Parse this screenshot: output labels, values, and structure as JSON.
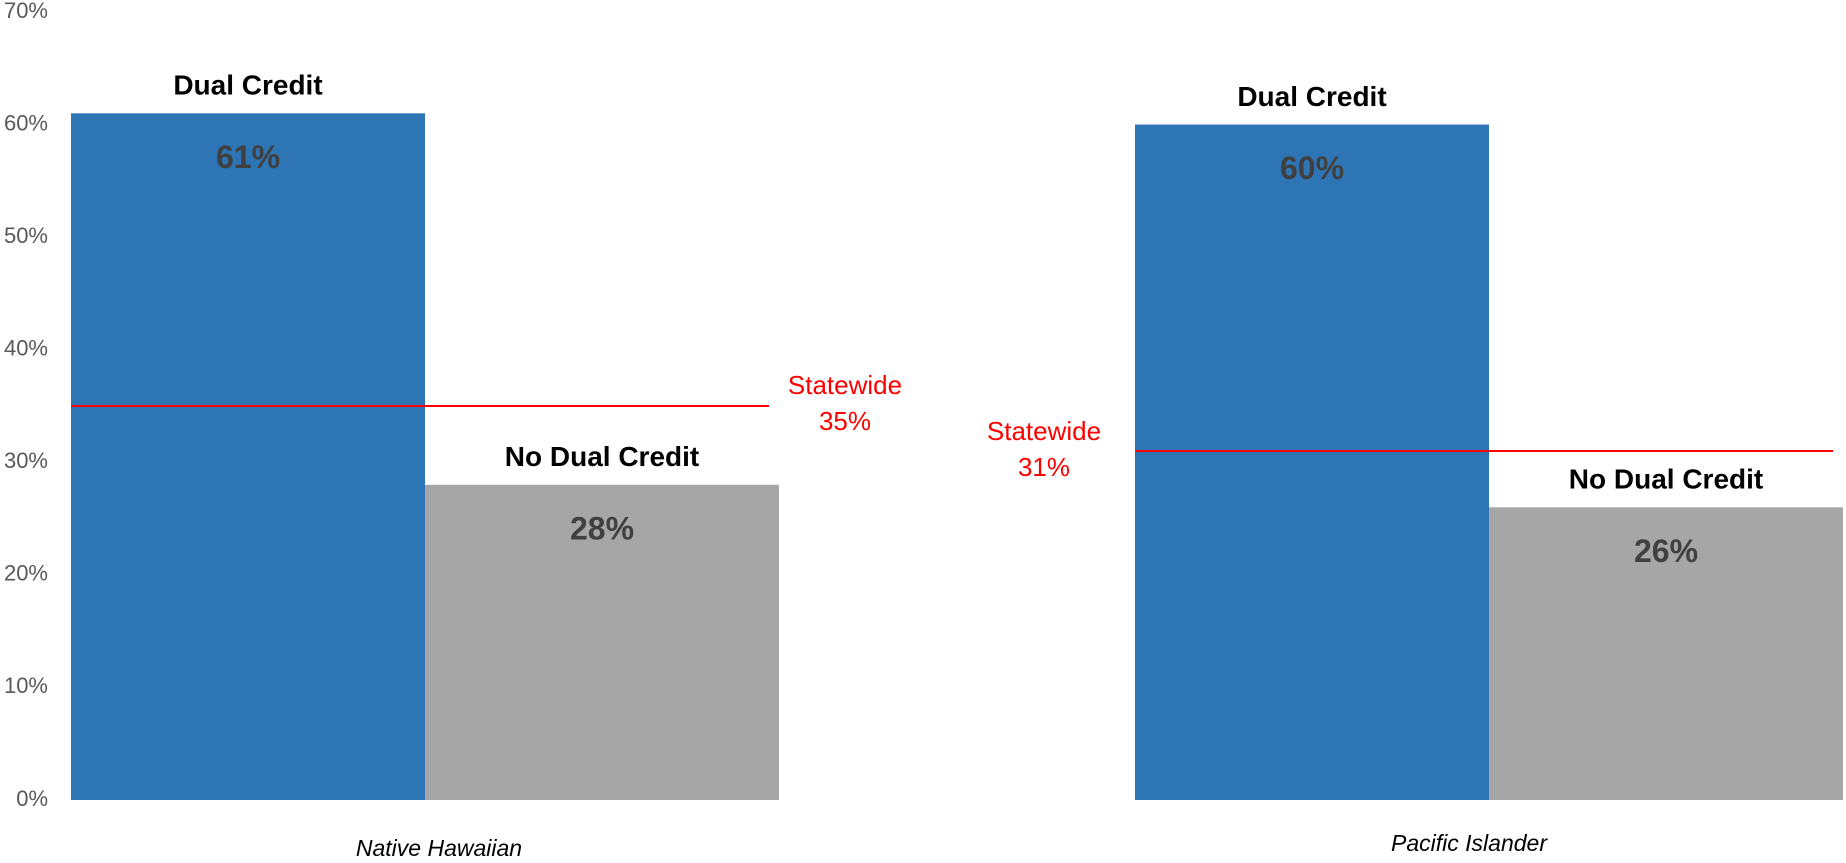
{
  "chart_data": {
    "type": "bar",
    "categories": [
      "Native Hawaiian",
      "Pacific Islander"
    ],
    "series": [
      {
        "name": "Dual Credit",
        "color": "#2e75b6",
        "values": [
          61,
          60
        ],
        "value_labels": [
          "61%",
          "60%"
        ]
      },
      {
        "name": "No Dual Credit",
        "color": "#a6a6a6",
        "values": [
          28,
          26
        ],
        "value_labels": [
          "28%",
          "26%"
        ]
      }
    ],
    "reference_lines": {
      "label": "Statewide",
      "color": "#ff0000",
      "values": [
        35,
        31
      ],
      "value_labels": [
        "35%",
        "31%"
      ]
    },
    "ylim": [
      0,
      70
    ],
    "yticks": [
      {
        "value": 0,
        "label": "0%"
      },
      {
        "value": 10,
        "label": "10%"
      },
      {
        "value": 20,
        "label": "20%"
      },
      {
        "value": 30,
        "label": "30%"
      },
      {
        "value": 40,
        "label": "40%"
      },
      {
        "value": 50,
        "label": "50%"
      },
      {
        "value": 60,
        "label": "60%"
      },
      {
        "value": 70,
        "label": "70%"
      }
    ]
  }
}
